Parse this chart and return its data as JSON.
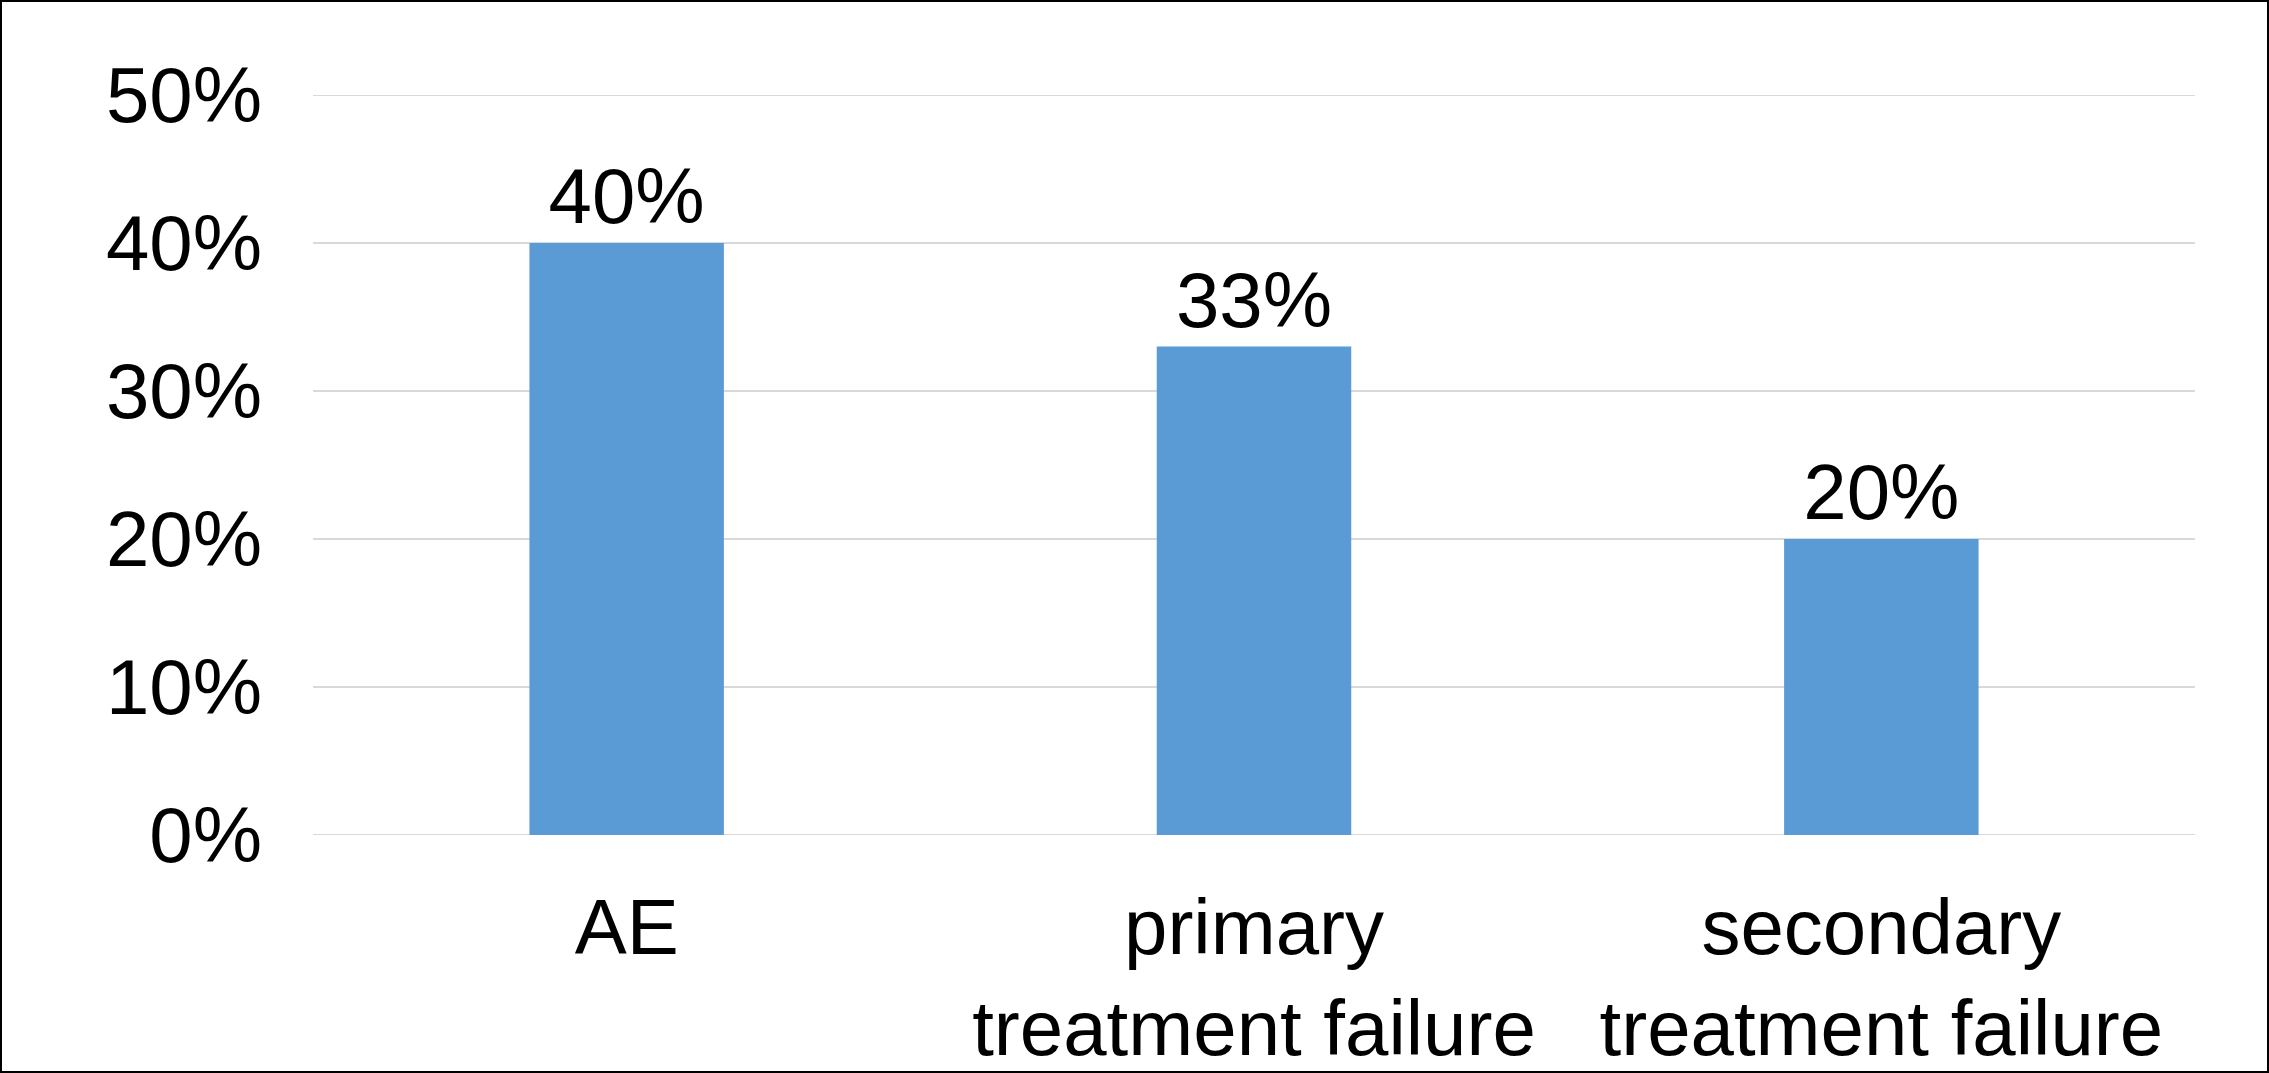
{
  "chart_data": {
    "type": "bar",
    "categories": [
      "AE",
      "primary\ntreatment failure",
      "secondary\ntreatment failure"
    ],
    "values": [
      40,
      33,
      20
    ],
    "value_labels": [
      "40%",
      "33%",
      "20%"
    ],
    "color": "#5b9bd5",
    "ylim": [
      0,
      50
    ],
    "yticks": [
      {
        "value": 0,
        "label": "0%"
      },
      {
        "value": 10,
        "label": "10%"
      },
      {
        "value": 20,
        "label": "20%"
      },
      {
        "value": 30,
        "label": "30%"
      },
      {
        "value": 40,
        "label": "40%"
      },
      {
        "value": 50,
        "label": "50%"
      }
    ],
    "grid": "y"
  }
}
